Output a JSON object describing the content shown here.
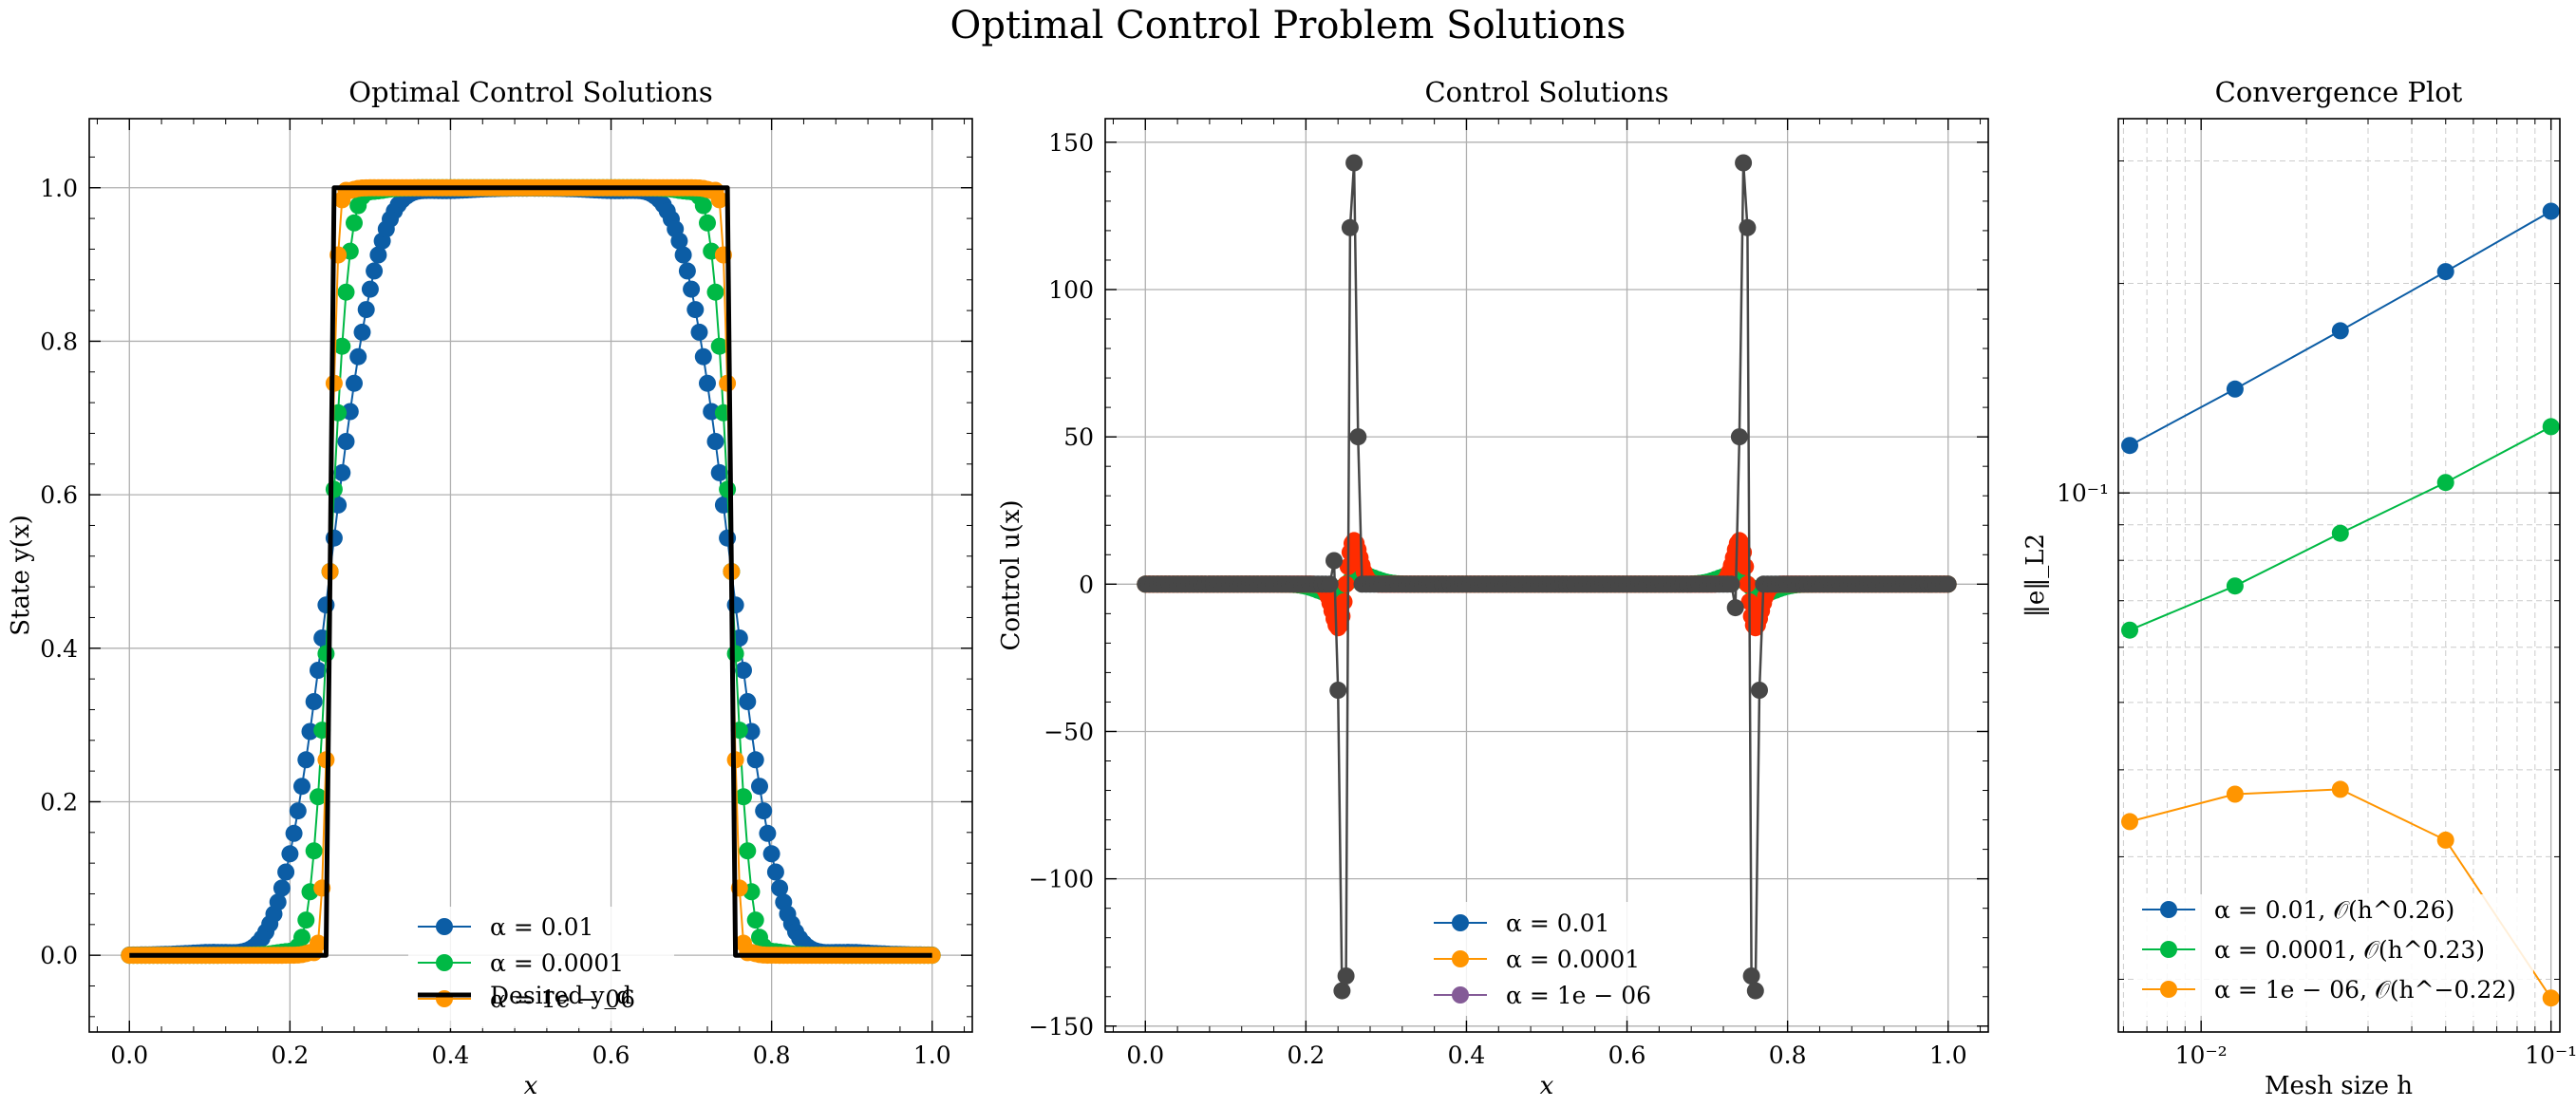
{
  "figure": {
    "suptitle": "Optimal Control Problem Solutions"
  },
  "colors": {
    "blue": "#0C5DA5",
    "green": "#00B945",
    "orange": "#FF9500",
    "red": "#FF2C00",
    "purple": "#845B97",
    "gray": "#474747",
    "black": "#000000",
    "grid": "#b0b0b0"
  },
  "chart_data": [
    {
      "type": "line",
      "title": "Optimal Control Solutions",
      "xlabel": "x",
      "ylabel": "State y(x)",
      "xlim": [
        -0.05,
        1.05
      ],
      "ylim": [
        -0.1,
        1.09
      ],
      "xticks": [
        "0.0",
        "0.2",
        "0.4",
        "0.6",
        "0.8",
        "1.0"
      ],
      "yticks": [
        "0.0",
        "0.2",
        "0.4",
        "0.6",
        "0.8",
        "1.0"
      ],
      "grid": true,
      "legend_position": "lower center",
      "legend": [
        "α = 0.01",
        "α = 0.0001",
        "α = 1e − 06",
        "Desired y_d"
      ],
      "series": [
        {
          "name": "α = 0.01",
          "color": "blue",
          "marker": true,
          "smoothing_width": 0.03,
          "overshoot": 0.035
        },
        {
          "name": "α = 0.0001",
          "color": "green",
          "marker": true,
          "smoothing_width": 0.012,
          "overshoot": 0.03
        },
        {
          "name": "α = 1e − 06",
          "color": "orange",
          "marker": true,
          "smoothing_width": 0.005,
          "overshoot": 0.035
        },
        {
          "name": "Desired y_d",
          "color": "black",
          "marker": false,
          "x": [
            0,
            0.245,
            0.255,
            0.745,
            0.755,
            1.0
          ],
          "y": [
            0,
            0,
            1,
            1,
            0,
            0
          ]
        }
      ],
      "n_points": 201
    },
    {
      "type": "line",
      "title": "Control Solutions",
      "xlabel": "x",
      "ylabel": "Control u(x)",
      "xlim": [
        -0.05,
        1.05
      ],
      "ylim": [
        -152,
        158
      ],
      "xticks": [
        "0.0",
        "0.2",
        "0.4",
        "0.6",
        "0.8",
        "1.0"
      ],
      "yticks": [
        "−150",
        "−100",
        "−50",
        "0",
        "50",
        "100",
        "150"
      ],
      "ytick_values": [
        -150,
        -100,
        -50,
        0,
        50,
        100,
        150
      ],
      "grid": true,
      "legend_position": "lower center",
      "legend": [
        "α = 0.01",
        "α = 0.0001",
        "α = 1e − 06"
      ],
      "legend_colors": [
        "blue",
        "orange",
        "purple"
      ],
      "series": [
        {
          "name": "α = 0.01",
          "color": "green",
          "amp": 3,
          "width": 0.03
        },
        {
          "name": "α = 0.0001",
          "color": "red",
          "amp": 15,
          "width": 0.014
        },
        {
          "name": "α = 1e − 06",
          "color": "gray",
          "spike_left": {
            "x": [
              0.235,
              0.24,
              0.245,
              0.25,
              0.255,
              0.26,
              0.265
            ],
            "y": [
              8,
              -36,
              -138,
              -133,
              121,
              143,
              50
            ]
          },
          "spike_right": {
            "x": [
              0.735,
              0.74,
              0.745,
              0.75,
              0.755,
              0.76,
              0.765
            ],
            "y": [
              -8,
              50,
              143,
              121,
              -133,
              -138,
              -36
            ]
          }
        }
      ],
      "n_points": 201
    },
    {
      "type": "line",
      "title": "Convergence Plot",
      "xlabel": "Mesh size h",
      "ylabel": "‖e‖_L2",
      "xscale": "log",
      "yscale": "log",
      "xlim": [
        0.0058,
        0.106
      ],
      "ylim": [
        0.0168,
        0.345
      ],
      "xticks": [
        "10⁻²",
        "10⁻¹"
      ],
      "yticks": [
        "10⁻¹"
      ],
      "grid": true,
      "legend_position": "lower left",
      "x": [
        0.00625,
        0.0125,
        0.025,
        0.05,
        0.1
      ],
      "series": [
        {
          "name": "α = 0.01,    𝒪(h^0.26)",
          "color": "blue",
          "values": [
            0.117,
            0.141,
            0.171,
            0.208,
            0.254
          ]
        },
        {
          "name": "α = 0.0001,    𝒪(h^0.23)",
          "color": "green",
          "values": [
            0.0635,
            0.0735,
            0.0875,
            0.1035,
            0.1245
          ]
        },
        {
          "name": "α = 1e − 06,    𝒪(h^−0.22)",
          "color": "orange",
          "values": [
            0.0337,
            0.0369,
            0.0375,
            0.0317,
            0.0188
          ]
        }
      ]
    }
  ]
}
